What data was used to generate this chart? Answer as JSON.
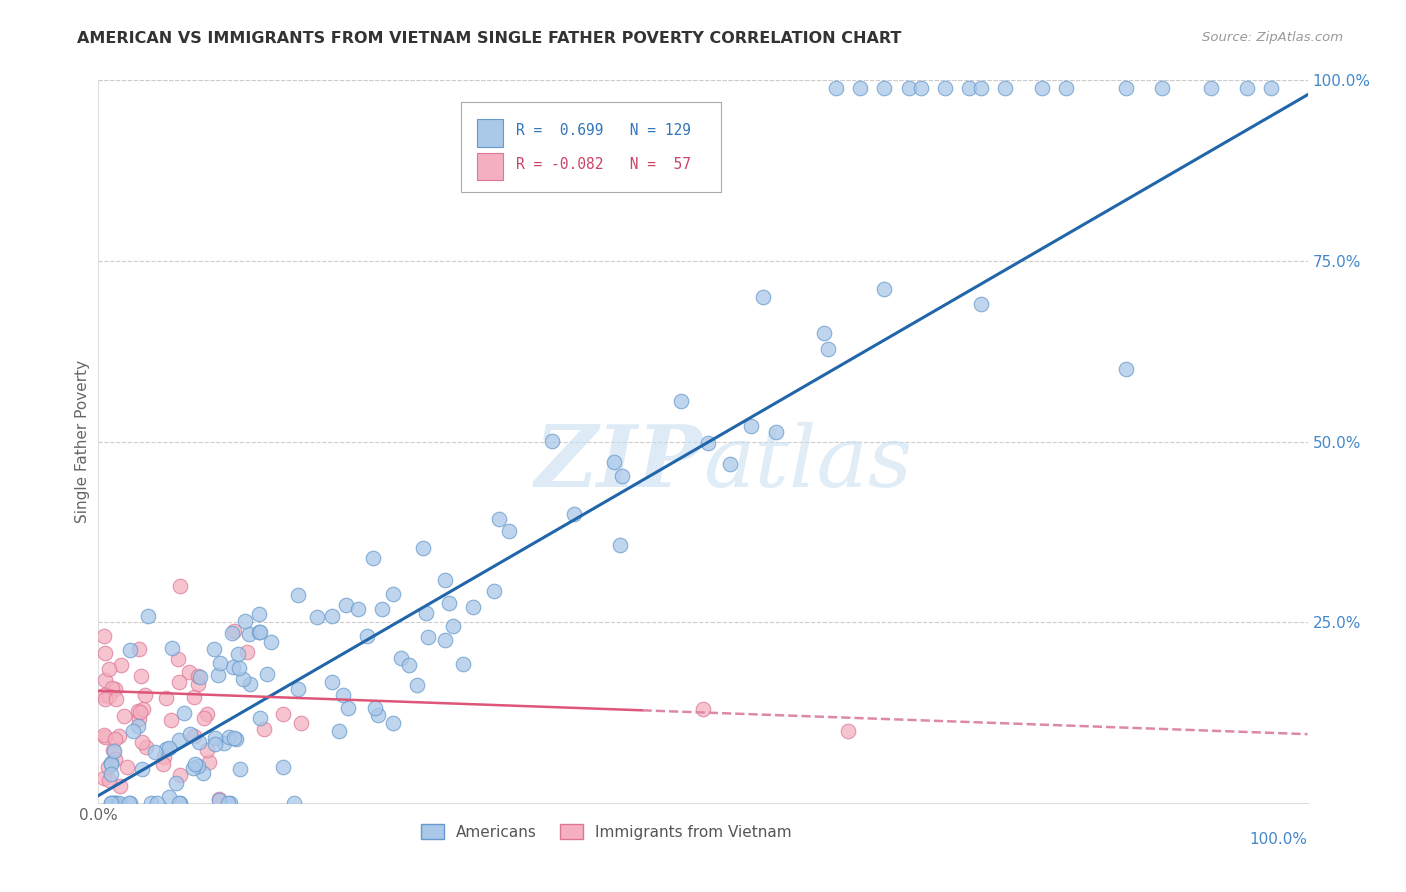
{
  "title": "AMERICAN VS IMMIGRANTS FROM VIETNAM SINGLE FATHER POVERTY CORRELATION CHART",
  "source": "Source: ZipAtlas.com",
  "ylabel": "Single Father Poverty",
  "xlim": [
    0,
    1
  ],
  "ylim": [
    0,
    1
  ],
  "r_american": 0.699,
  "n_american": 129,
  "r_vietnam": -0.082,
  "n_vietnam": 57,
  "blue_scatter_face": "#aac8e8",
  "blue_scatter_edge": "#6699cc",
  "pink_scatter_face": "#f4b0c0",
  "pink_scatter_edge": "#dd7799",
  "blue_line_color": "#2266aa",
  "pink_line_color": "#dd5577",
  "pink_dashed_color": "#dd88aa",
  "watermark_color": "#c8dff0",
  "background_color": "#ffffff",
  "grid_color": "#cccccc",
  "title_color": "#333333",
  "axis_label_color": "#666666",
  "right_tick_color": "#4488cc",
  "legend_text_blue": "#3377bb",
  "legend_text_pink": "#cc4466"
}
